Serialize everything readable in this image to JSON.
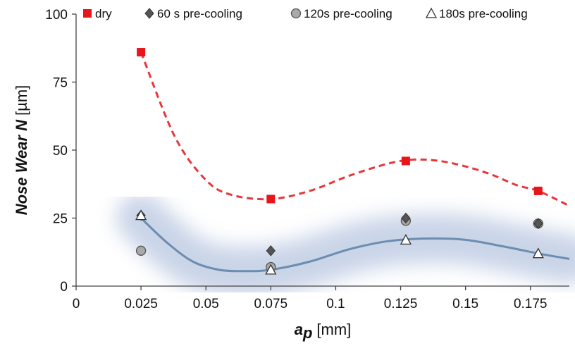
{
  "chart_data": {
    "type": "scatter",
    "title": "",
    "xlabel": {
      "symbol": "a",
      "subscript": "p",
      "unit": "[mm]"
    },
    "ylabel": {
      "italic": "Nose Wear N",
      "unit": "[µm]"
    },
    "xlim": [
      0,
      0.19
    ],
    "ylim": [
      0,
      100
    ],
    "x_ticks": [
      "0",
      "0.025",
      "0.05",
      "0.075",
      "0.1",
      "0.125",
      "0.15",
      "0.175"
    ],
    "x_tick_values": [
      0,
      0.025,
      0.05,
      0.075,
      0.1,
      0.125,
      0.15,
      0.175
    ],
    "y_ticks": [
      "0",
      "25",
      "50",
      "75",
      "100"
    ],
    "y_tick_values": [
      0,
      25,
      50,
      75,
      100
    ],
    "grid": false,
    "legend_position": "top",
    "series": [
      {
        "name": "dry",
        "marker": "square",
        "color": "#e8161b",
        "points": [
          [
            0.025,
            86
          ],
          [
            0.075,
            32
          ],
          [
            0.127,
            46
          ],
          [
            0.178,
            35
          ]
        ]
      },
      {
        "name": "60 s pre-cooling",
        "marker": "diamond",
        "color": "#555555",
        "points": [
          [
            0.025,
            26
          ],
          [
            0.075,
            13
          ],
          [
            0.127,
            25
          ],
          [
            0.178,
            23
          ]
        ]
      },
      {
        "name": "120s pre-cooling",
        "marker": "circle",
        "color": "#a9a9a9",
        "points": [
          [
            0.025,
            13
          ],
          [
            0.075,
            7
          ],
          [
            0.127,
            24
          ],
          [
            0.178,
            23
          ]
        ]
      },
      {
        "name": "180s pre-cooling",
        "marker": "triangle",
        "color": "#ffffff",
        "points": [
          [
            0.025,
            26
          ],
          [
            0.075,
            6
          ],
          [
            0.127,
            17
          ],
          [
            0.178,
            12
          ]
        ]
      }
    ],
    "trend_lines": [
      {
        "series": "dry",
        "style": "dashed",
        "color": "#e8363a",
        "points": [
          [
            0.025,
            86
          ],
          [
            0.038,
            55
          ],
          [
            0.05,
            39
          ],
          [
            0.06,
            33.5
          ],
          [
            0.075,
            32
          ],
          [
            0.09,
            35
          ],
          [
            0.105,
            40.5
          ],
          [
            0.12,
            45
          ],
          [
            0.13,
            46.5
          ],
          [
            0.14,
            46
          ],
          [
            0.15,
            44
          ],
          [
            0.16,
            41
          ],
          [
            0.17,
            37
          ],
          [
            0.178,
            35
          ],
          [
            0.19,
            29.5
          ]
        ]
      },
      {
        "series": "pre-cooling",
        "style": "solid",
        "color": "#6b8db0",
        "points": [
          [
            0.025,
            25
          ],
          [
            0.035,
            16
          ],
          [
            0.045,
            9
          ],
          [
            0.055,
            6
          ],
          [
            0.065,
            5.5
          ],
          [
            0.075,
            6
          ],
          [
            0.09,
            9
          ],
          [
            0.105,
            13.5
          ],
          [
            0.12,
            16.5
          ],
          [
            0.135,
            17.5
          ],
          [
            0.15,
            17
          ],
          [
            0.165,
            14.5
          ],
          [
            0.178,
            12
          ],
          [
            0.19,
            10
          ]
        ]
      }
    ]
  }
}
